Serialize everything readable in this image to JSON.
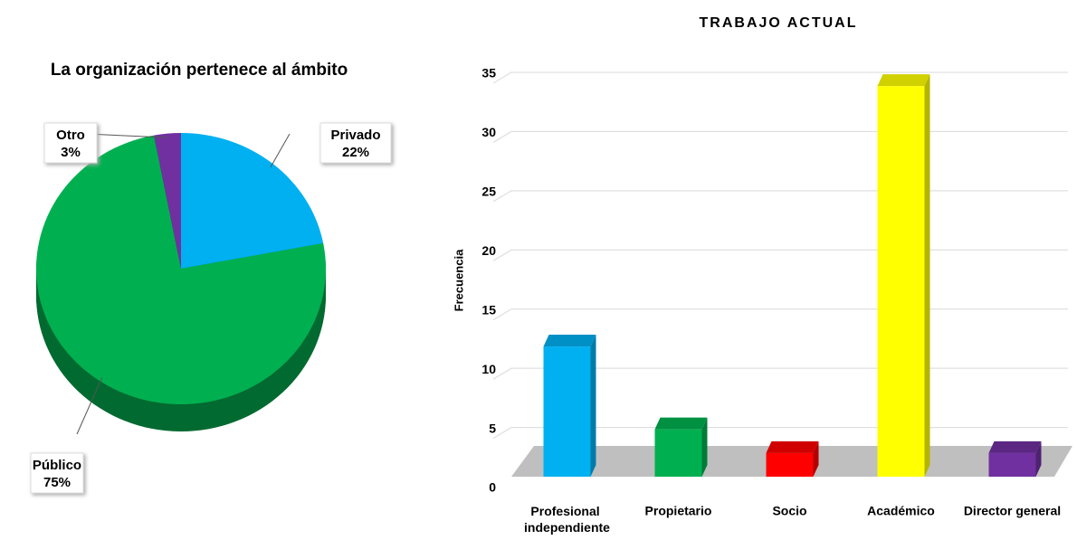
{
  "chart_data": [
    {
      "type": "pie",
      "title": "La organización pertenece al ámbito",
      "categories": [
        "Privado",
        "Público",
        "Otro"
      ],
      "values": [
        22,
        75,
        3
      ],
      "value_labels": [
        "22%",
        "75%",
        "3%"
      ],
      "colors": [
        "#00b0f0",
        "#00b050",
        "#7030a0"
      ]
    },
    {
      "type": "bar",
      "title": "TRABAJO ACTUAL",
      "y_label": "Frecuencia",
      "categories": [
        "Profesional independiente",
        "Propietario",
        "Socio",
        "Académico",
        "Director general"
      ],
      "values": [
        11,
        4,
        2,
        33,
        2
      ],
      "colors": [
        "#00b0f0",
        "#00b050",
        "#ff0000",
        "#ffff00",
        "#7030a0"
      ],
      "ylim": [
        0,
        35
      ],
      "yticks": [
        0,
        5,
        10,
        15,
        20,
        25,
        30,
        35
      ],
      "grid": true
    }
  ]
}
